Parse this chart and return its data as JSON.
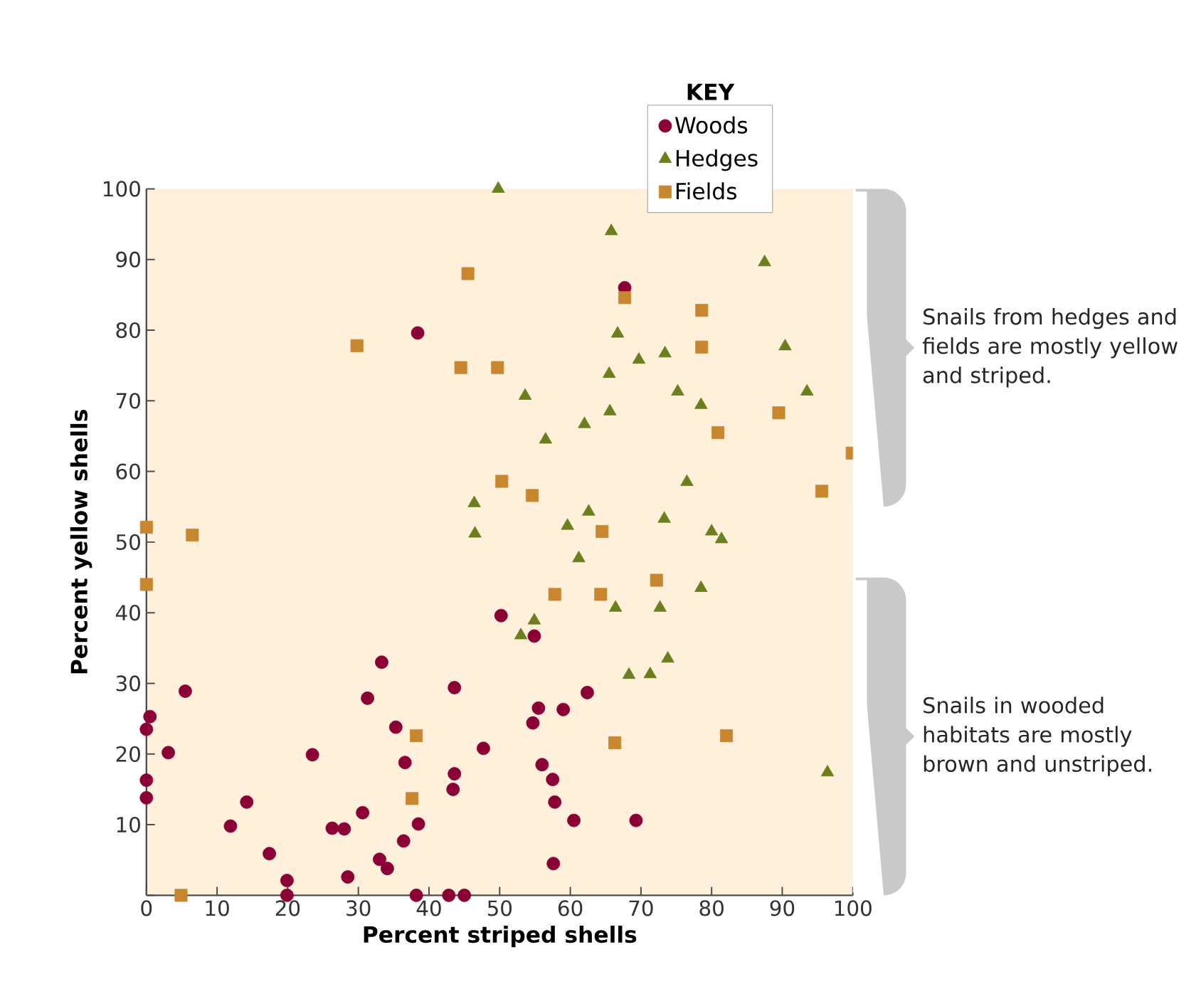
{
  "chart_data": {
    "type": "scatter",
    "xlabel": "Percent striped shells",
    "ylabel": "Percent yellow shells",
    "legend_title": "KEY",
    "legend": "top",
    "grid": false,
    "xlim": [
      0,
      100
    ],
    "ylim": [
      0,
      100
    ],
    "xticks": [
      0,
      10,
      20,
      30,
      40,
      50,
      60,
      70,
      80,
      90,
      100
    ],
    "yticks": [
      {
        "value": 0,
        "label": null
      },
      10,
      20,
      30,
      40,
      50,
      60,
      70,
      80,
      90,
      100
    ],
    "series": [
      {
        "name": "Woods",
        "color": "#8b0035",
        "marker": "circle",
        "x": [
          67.7,
          38.4,
          50.2,
          54.9,
          62.4,
          55.5,
          59,
          54.7,
          56,
          57.5,
          57.8,
          60.5,
          69.3,
          57.6,
          0,
          0,
          0,
          0.5,
          3.1,
          5.5,
          11.9,
          14.2,
          17.4,
          19.9,
          19.9,
          23.5,
          26.3,
          28,
          28.5,
          30.6,
          31.3,
          33.3,
          33,
          34.1,
          35.3,
          36.6,
          36.4,
          38.5,
          38.2,
          42.8,
          45,
          43.4,
          43.6,
          43.6,
          47.7
        ],
        "values": [
          86,
          79.6,
          39.6,
          36.7,
          28.7,
          26.5,
          26.3,
          24.4,
          18.5,
          16.4,
          13.2,
          10.6,
          10.6,
          4.5,
          13.8,
          16.3,
          23.5,
          25.3,
          20.2,
          28.9,
          9.8,
          13.2,
          5.9,
          2.1,
          0,
          19.9,
          9.5,
          9.4,
          2.6,
          11.7,
          27.9,
          33,
          5.1,
          3.8,
          23.8,
          18.8,
          7.7,
          10.1,
          0,
          0,
          0,
          15,
          17.2,
          29.4,
          20.8
        ]
      },
      {
        "name": "Hedges",
        "color": "#6b7f1e",
        "marker": "triangle",
        "x": [
          49.8,
          65.8,
          87.5,
          66.7,
          69.7,
          73.4,
          90.4,
          65.5,
          53.6,
          75.2,
          93.5,
          78.5,
          65.6,
          62,
          56.5,
          76.5,
          62.6,
          59.6,
          73.3,
          80,
          81.4,
          46.4,
          46.5,
          61.2,
          78.5,
          54.9,
          53,
          66.4,
          72.7,
          73.8,
          68.3,
          71.3,
          96.4
        ],
        "values": [
          100,
          94,
          89.6,
          79.5,
          75.8,
          76.7,
          77.7,
          73.8,
          70.7,
          71.3,
          71.3,
          69.4,
          68.5,
          66.7,
          64.5,
          58.5,
          54.3,
          52.3,
          53.3,
          51.5,
          50.4,
          55.5,
          51.2,
          47.7,
          43.5,
          38.9,
          36.8,
          40.7,
          40.7,
          33.5,
          31.2,
          31.3,
          17.4
        ]
      },
      {
        "name": "Fields",
        "color": "#c8862e",
        "marker": "square",
        "x": [
          45.5,
          29.8,
          44.5,
          49.7,
          50.3,
          0,
          6.5,
          0,
          38.2,
          37.6,
          4.9,
          67.7,
          78.6,
          78.6,
          89.5,
          80.9,
          99.9,
          54.6,
          95.6,
          64.5,
          72.2,
          57.8,
          64.3,
          66.3,
          82.1
        ],
        "values": [
          88,
          77.8,
          74.7,
          74.7,
          58.6,
          52.1,
          51,
          44,
          22.6,
          13.7,
          0,
          84.6,
          82.8,
          77.6,
          68.3,
          65.5,
          62.6,
          56.6,
          57.2,
          51.5,
          44.6,
          42.6,
          42.6,
          21.6,
          22.6
        ]
      }
    ],
    "annotations": [
      "Snails from hedges and fields are mostly yellow and striped.",
      "Snails in wooded habitats are mostly brown and unstriped."
    ]
  }
}
